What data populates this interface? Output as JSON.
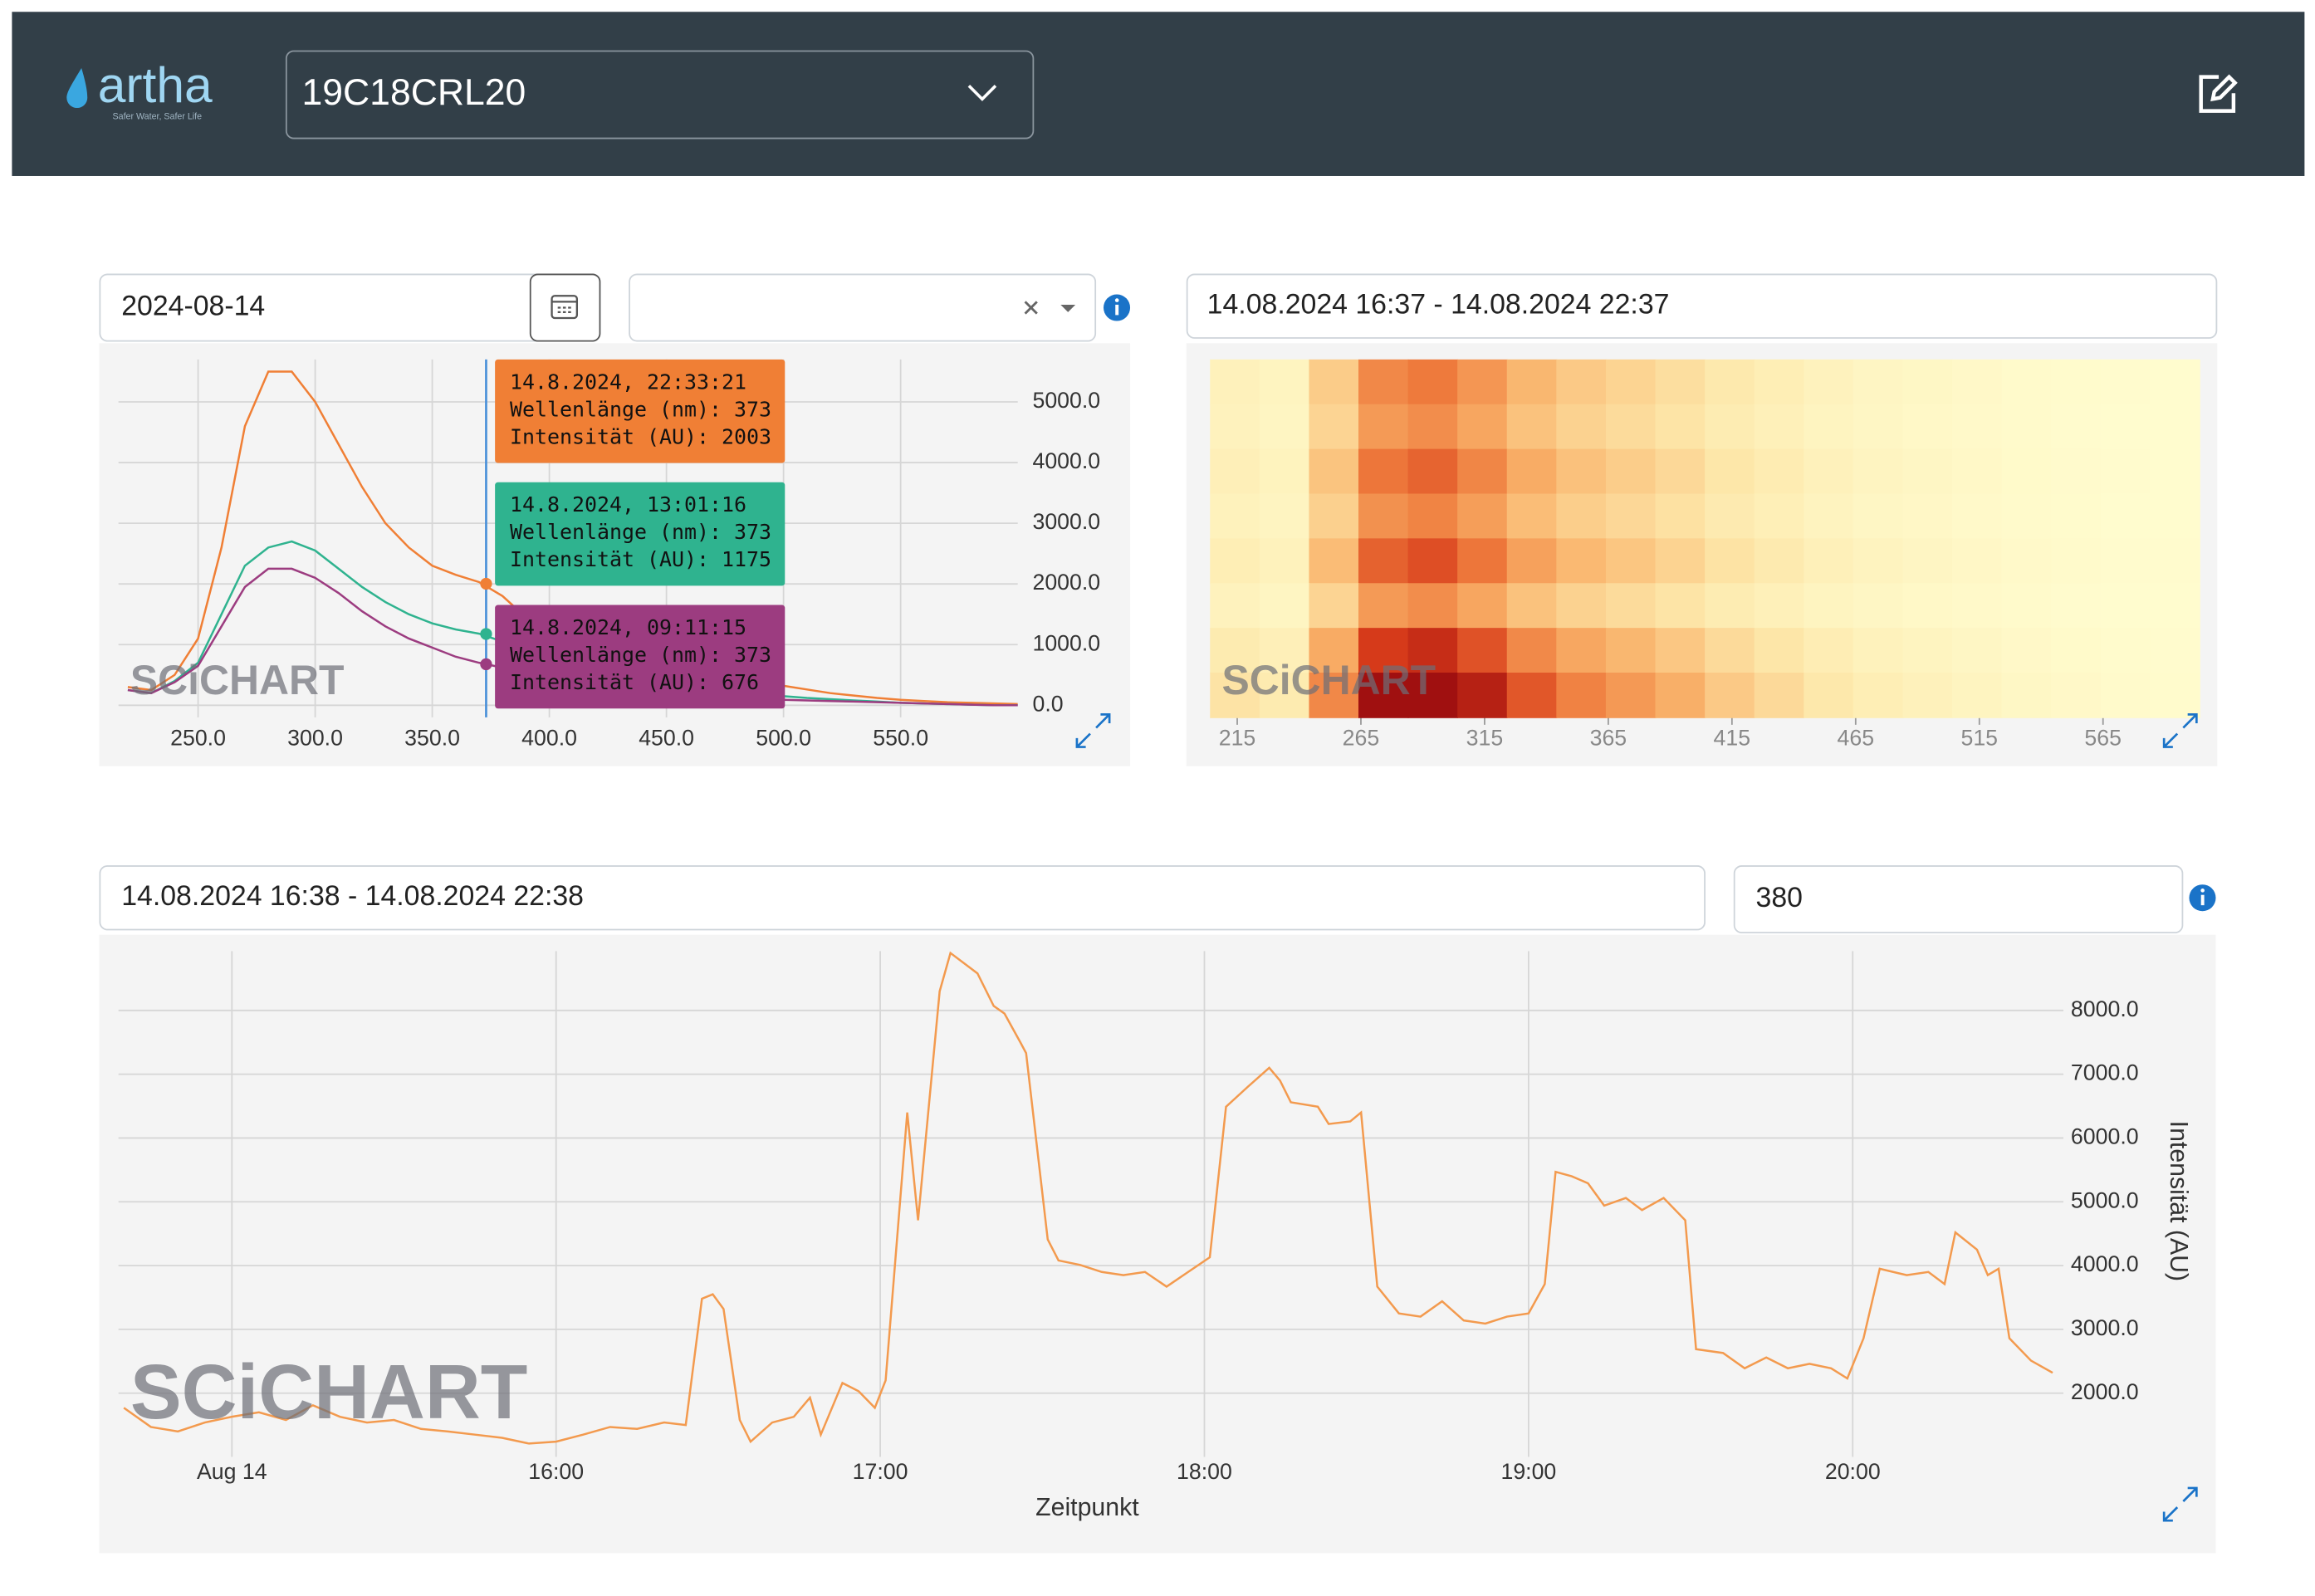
{
  "header": {
    "logo": "artha",
    "tagline": "Safer Water, Safer Life",
    "device": "19C18CRL20"
  },
  "controls": {
    "date": "2024-08-14",
    "heatmap_range": "14.08.2024 16:37 - 14.08.2024 22:37",
    "timeseries_range": "14.08.2024 16:38 - 14.08.2024 22:38",
    "wavelength": "380"
  },
  "watermark": "SCiCHART",
  "chart_data": [
    {
      "type": "line",
      "grid": true,
      "x": [
        220,
        230,
        240,
        250,
        260,
        270,
        280,
        290,
        300,
        310,
        320,
        330,
        340,
        350,
        360,
        370,
        380,
        390,
        400,
        410,
        420,
        430,
        440,
        450,
        460,
        470,
        480,
        490,
        500,
        510,
        520,
        530,
        540,
        550,
        560,
        570,
        580,
        590,
        600
      ],
      "xlim": [
        216,
        600
      ],
      "ylim": [
        -200,
        5700
      ],
      "xticks": [
        {
          "value": 250,
          "label": "250.0"
        },
        {
          "value": 300,
          "label": "300.0"
        },
        {
          "value": 350,
          "label": "350.0"
        },
        {
          "value": 400,
          "label": "400.0"
        },
        {
          "value": 450,
          "label": "450.0"
        },
        {
          "value": 500,
          "label": "500.0"
        },
        {
          "value": 550,
          "label": "550.0"
        }
      ],
      "yticks": [
        {
          "value": 0,
          "label": "0.0"
        },
        {
          "value": 1000,
          "label": "1000.0"
        },
        {
          "value": 2000,
          "label": "2000.0"
        },
        {
          "value": 3000,
          "label": "3000.0"
        },
        {
          "value": 4000,
          "label": "4000.0"
        },
        {
          "value": 5000,
          "label": "5000.0"
        }
      ],
      "cursor_x": 373,
      "series": [
        {
          "color": "#f07f35",
          "values": [
            300,
            250,
            500,
            1100,
            2600,
            4600,
            5500,
            5500,
            5000,
            4300,
            3600,
            3000,
            2600,
            2300,
            2150,
            2030,
            1800,
            1450,
            1150,
            950,
            800,
            700,
            600,
            520,
            460,
            420,
            380,
            350,
            320,
            260,
            200,
            160,
            120,
            90,
            70,
            50,
            40,
            30,
            20
          ],
          "tooltip": {
            "time": "14.8.2024, 22:33:21",
            "wavelength": "Wellenlänge (nm): 373",
            "intensity": "Intensität (AU): 2003",
            "value": 2003
          }
        },
        {
          "color": "#2fb38f",
          "values": [
            250,
            200,
            400,
            700,
            1500,
            2300,
            2600,
            2700,
            2550,
            2250,
            1950,
            1700,
            1500,
            1350,
            1250,
            1180,
            1050,
            900,
            700,
            560,
            450,
            380,
            320,
            270,
            230,
            200,
            180,
            160,
            150,
            120,
            100,
            80,
            60,
            40,
            30,
            20,
            10,
            0,
            0
          ],
          "tooltip": {
            "time": "14.8.2024, 13:01:16",
            "wavelength": "Wellenlänge (nm): 373",
            "intensity": "Intensität (AU): 1175",
            "value": 1175
          }
        },
        {
          "color": "#9c3c80",
          "values": [
            250,
            200,
            380,
            650,
            1300,
            1950,
            2250,
            2250,
            2100,
            1850,
            1550,
            1300,
            1100,
            950,
            800,
            700,
            620,
            520,
            430,
            360,
            300,
            250,
            210,
            180,
            160,
            140,
            120,
            100,
            90,
            80,
            70,
            60,
            50,
            40,
            30,
            20,
            10,
            0,
            0
          ],
          "tooltip": {
            "time": "14.8.2024, 09:11:15",
            "wavelength": "Wellenlänge (nm): 373",
            "intensity": "Intensität (AU): 676",
            "value": 676
          }
        }
      ]
    },
    {
      "type": "heatmap",
      "x": [
        214,
        234,
        254,
        274,
        294,
        314,
        334,
        354,
        374,
        394,
        414,
        434,
        454,
        474,
        494,
        514,
        534,
        554,
        574,
        594
      ],
      "xlim": [
        204,
        604
      ],
      "xticks": [
        215,
        265,
        315,
        365,
        415,
        465,
        515,
        565
      ],
      "zlim": [
        0,
        8000
      ],
      "values": [
        [
          640,
          480,
          2000,
          4000,
          4400,
          3600,
          2640,
          2080,
          1760,
          1440,
          1040,
          800,
          560,
          400,
          320,
          240,
          160,
          120,
          80,
          64
        ],
        [
          560,
          420,
          1750,
          3500,
          3850,
          3150,
          2310,
          1820,
          1540,
          1260,
          910,
          700,
          490,
          350,
          280,
          210,
          140,
          105,
          70,
          56
        ],
        [
          720,
          540,
          2250,
          4500,
          4950,
          4050,
          2970,
          2340,
          1980,
          1620,
          1170,
          900,
          630,
          450,
          360,
          270,
          180,
          135,
          90,
          72
        ],
        [
          600,
          450,
          1875,
          3750,
          4125,
          3375,
          2475,
          1950,
          1650,
          1350,
          975,
          750,
          525,
          375,
          300,
          225,
          150,
          113,
          75,
          60
        ],
        [
          800,
          600,
          2500,
          5000,
          5500,
          4500,
          3300,
          2600,
          2200,
          1800,
          1300,
          1000,
          700,
          500,
          400,
          300,
          200,
          150,
          100,
          80
        ],
        [
          560,
          420,
          1750,
          3500,
          3850,
          3150,
          2310,
          1820,
          1540,
          1260,
          910,
          700,
          490,
          350,
          280,
          210,
          140,
          105,
          70,
          56
        ],
        [
          960,
          720,
          3000,
          6000,
          6600,
          5400,
          3960,
          3120,
          2640,
          2160,
          1560,
          1200,
          840,
          600,
          480,
          360,
          240,
          180,
          120,
          96
        ],
        [
          1280,
          960,
          4000,
          8000,
          8800,
          7200,
          5280,
          4160,
          3520,
          2880,
          2080,
          1600,
          1120,
          800,
          640,
          480,
          320,
          240,
          160,
          128
        ]
      ]
    },
    {
      "type": "line",
      "grid": true,
      "xlabel": "Zeitpunkt",
      "ylabel": "Intensität (AU)",
      "x": [
        "14:40",
        "14:45",
        "14:50",
        "14:55",
        "15:00",
        "15:05",
        "15:10",
        "15:15",
        "15:20",
        "15:25",
        "15:30",
        "15:35",
        "15:40",
        "15:45",
        "15:50",
        "15:55",
        "16:00",
        "16:05",
        "16:10",
        "16:15",
        "16:20",
        "16:24",
        "16:27",
        "16:29",
        "16:31",
        "16:34",
        "16:36",
        "16:40",
        "16:44",
        "16:47",
        "16:49",
        "16:53",
        "16:56",
        "16:59",
        "17:01",
        "17:05",
        "17:07",
        "17:11",
        "17:13",
        "17:18",
        "17:21",
        "17:23",
        "17:26",
        "17:27",
        "17:31",
        "17:33",
        "17:37",
        "17:41",
        "17:45",
        "17:49",
        "17:53",
        "17:57",
        "18:01",
        "18:04",
        "18:08",
        "18:12",
        "18:14",
        "18:16",
        "18:21",
        "18:23",
        "18:27",
        "18:29",
        "18:32",
        "18:36",
        "18:40",
        "18:44",
        "18:48",
        "18:52",
        "18:56",
        "19:00",
        "19:03",
        "19:05",
        "19:08",
        "19:11",
        "19:14",
        "19:18",
        "19:21",
        "19:25",
        "19:29",
        "19:31",
        "19:36",
        "19:40",
        "19:44",
        "19:48",
        "19:52",
        "19:56",
        "19:59",
        "20:02",
        "20:05",
        "20:10",
        "20:14",
        "20:17",
        "20:19",
        "20:23",
        "20:25",
        "20:27",
        "20:29",
        "20:33",
        "20:37"
      ],
      "xlim": [
        "14:39",
        "20:39"
      ],
      "ylim": [
        1000,
        8930
      ],
      "xticks": [
        {
          "value": "15:00",
          "label": "Aug 14"
        },
        "16:00",
        "17:00",
        "18:00",
        "19:00",
        "20:00"
      ],
      "yticks": [
        {
          "value": 2000,
          "label": "2000.0"
        },
        {
          "value": 3000,
          "label": "3000.0"
        },
        {
          "value": 4000,
          "label": "4000.0"
        },
        {
          "value": 5000,
          "label": "5000.0"
        },
        {
          "value": 6000,
          "label": "6000.0"
        },
        {
          "value": 7000,
          "label": "7000.0"
        },
        {
          "value": 8000,
          "label": "8000.0"
        }
      ],
      "series": [
        {
          "color": "#f39a4e",
          "values": [
            1770,
            1470,
            1400,
            1540,
            1630,
            1700,
            1580,
            1810,
            1630,
            1540,
            1580,
            1440,
            1400,
            1350,
            1300,
            1210,
            1240,
            1350,
            1470,
            1440,
            1540,
            1500,
            3480,
            3550,
            3320,
            1580,
            1240,
            1540,
            1630,
            1930,
            1350,
            2160,
            2030,
            1770,
            2200,
            6400,
            4710,
            8300,
            8900,
            8580,
            8070,
            7950,
            7490,
            7330,
            4410,
            4080,
            4010,
            3900,
            3850,
            3900,
            3670,
            3900,
            4130,
            6490,
            6800,
            7100,
            6900,
            6560,
            6490,
            6220,
            6260,
            6400,
            3670,
            3250,
            3200,
            3440,
            3140,
            3090,
            3200,
            3250,
            3710,
            5470,
            5400,
            5290,
            4940,
            5060,
            4870,
            5060,
            4710,
            2690,
            2630,
            2390,
            2560,
            2390,
            2460,
            2390,
            2230,
            2860,
            3950,
            3850,
            3900,
            3710,
            4520,
            4250,
            3850,
            3950,
            2860,
            2510,
            2320
          ]
        }
      ]
    }
  ]
}
